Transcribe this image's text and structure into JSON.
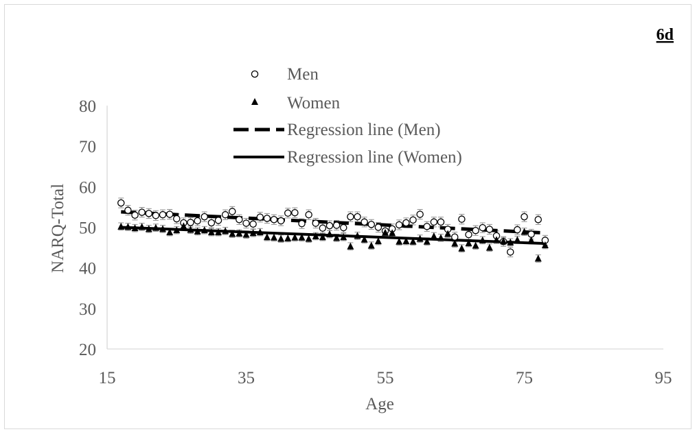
{
  "chart_data": {
    "type": "scatter",
    "panel_label": "6d",
    "xlabel": "Age",
    "ylabel": "NARQ-Total",
    "xlim": [
      15,
      95
    ],
    "ylim": [
      20,
      80
    ],
    "x_ticks": [
      "15",
      "35",
      "55",
      "75",
      "95"
    ],
    "y_ticks": [
      "20",
      "30",
      "40",
      "50",
      "60",
      "70",
      "80"
    ],
    "grid": false,
    "legend_position": "top-center",
    "legend": [
      "Men",
      "Women",
      "Regression line (Men)",
      "Regression line (Women)"
    ],
    "series": [
      {
        "name": "Men",
        "marker": "open-circle",
        "error_bars": true,
        "x": [
          17,
          18,
          19,
          20,
          21,
          22,
          23,
          24,
          25,
          26,
          27,
          28,
          29,
          30,
          31,
          32,
          33,
          34,
          35,
          36,
          37,
          38,
          39,
          40,
          41,
          42,
          43,
          44,
          45,
          46,
          47,
          48,
          49,
          50,
          51,
          52,
          53,
          54,
          55,
          56,
          57,
          58,
          59,
          60,
          61,
          62,
          63,
          64,
          65,
          66,
          67,
          68,
          69,
          70,
          71,
          72,
          73,
          74,
          75,
          76,
          77,
          78
        ],
        "y": [
          56.0,
          54.2,
          53.0,
          53.7,
          53.4,
          52.9,
          53.1,
          53.2,
          52.1,
          51.1,
          51.2,
          51.6,
          52.6,
          51.1,
          51.7,
          53.1,
          53.9,
          51.9,
          51.0,
          50.8,
          52.5,
          52.2,
          51.9,
          51.6,
          53.5,
          53.6,
          50.9,
          53.1,
          51.0,
          49.8,
          50.4,
          50.5,
          49.9,
          52.6,
          52.6,
          51.3,
          50.7,
          50.0,
          49.1,
          49.6,
          50.6,
          51.1,
          51.8,
          53.2,
          50.2,
          51.3,
          51.3,
          49.5,
          47.6,
          52.0,
          48.2,
          49.2,
          49.9,
          49.5,
          47.9,
          46.5,
          43.9,
          49.4,
          52.6,
          48.3,
          51.9,
          46.8
        ]
      },
      {
        "name": "Women",
        "marker": "filled-triangle",
        "error_bars": true,
        "x": [
          17,
          18,
          19,
          20,
          21,
          22,
          23,
          24,
          25,
          26,
          27,
          28,
          29,
          30,
          31,
          32,
          33,
          34,
          35,
          36,
          37,
          38,
          39,
          40,
          41,
          42,
          43,
          44,
          45,
          46,
          47,
          48,
          49,
          50,
          51,
          52,
          53,
          54,
          55,
          56,
          57,
          58,
          59,
          60,
          61,
          62,
          63,
          64,
          65,
          66,
          67,
          68,
          69,
          70,
          71,
          72,
          73,
          74,
          75,
          76,
          77,
          78
        ],
        "y": [
          50.2,
          50.1,
          49.8,
          50.1,
          49.6,
          49.9,
          49.6,
          48.8,
          49.3,
          50.3,
          49.4,
          49.0,
          49.3,
          48.8,
          48.8,
          49.1,
          48.4,
          48.5,
          48.2,
          48.6,
          48.8,
          47.6,
          47.5,
          47.2,
          47.3,
          47.5,
          47.5,
          47.2,
          47.8,
          47.6,
          48.3,
          47.4,
          47.6,
          45.3,
          47.9,
          47.0,
          45.5,
          46.6,
          48.7,
          48.6,
          46.5,
          46.6,
          46.5,
          47.2,
          46.5,
          47.8,
          47.4,
          48.4,
          46.0,
          44.8,
          46.1,
          45.5,
          46.8,
          45.0,
          46.9,
          46.6,
          46.3,
          46.9,
          48.9,
          46.8,
          42.3,
          45.6
        ]
      },
      {
        "name": "Regression line (Men)",
        "style": "dashed",
        "x": [
          17,
          78
        ],
        "y": [
          53.8,
          48.6
        ]
      },
      {
        "name": "Regression line (Women)",
        "style": "solid",
        "x": [
          17,
          78
        ],
        "y": [
          50.0,
          46.0
        ]
      }
    ]
  }
}
